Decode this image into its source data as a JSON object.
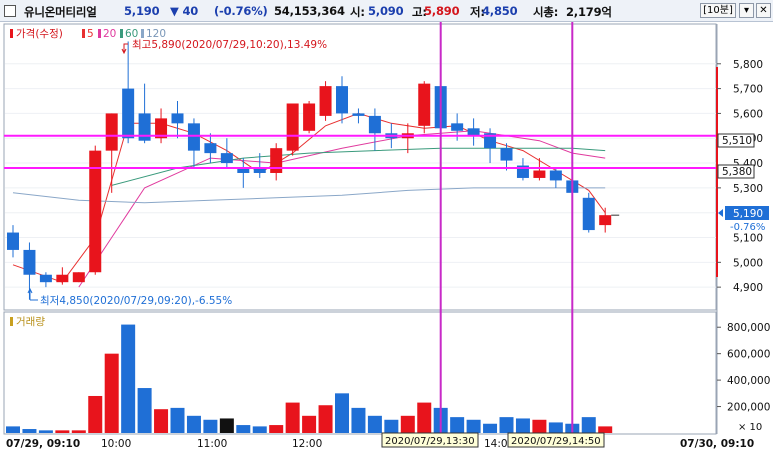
{
  "header": {
    "stock_name": "유니온머티리얼",
    "price": "5,190",
    "change": "▼ 40",
    "change_pct": "(-0.76%)",
    "volume": "54,153,364",
    "open_label": "시:",
    "open": "5,090",
    "high_label": "고:",
    "high": "5,890",
    "low_label": "저:",
    "low": "4,850",
    "mcap_label": "시총:",
    "mcap": "2,179억",
    "interval": "[10분]",
    "btn_minimize": "▾",
    "btn_close": "✕"
  },
  "legend": {
    "price_label": "가격(수정)",
    "ma": [
      "5",
      "20",
      "60",
      "120"
    ]
  },
  "annotations": {
    "high": "최고5,890(2020/07/29,10:20),13.49%",
    "low": "최저4,850(2020/07/29,09:20),-6.55%"
  },
  "volume_panel": {
    "title": "거래량"
  },
  "price_axis": {
    "ticks": [
      "5,800",
      "5,700",
      "5,600",
      "5,500",
      "5,300",
      "5,000",
      "4,900"
    ],
    "partial_ticks": [
      "5,400",
      "5,100"
    ],
    "box_5510": "5,510",
    "box_5380": "5,380",
    "current": "5,190",
    "current_pct": "-0.76%"
  },
  "volume_axis": {
    "ticks": [
      "800,000",
      "600,000",
      "400,000",
      "200,000"
    ],
    "multiplier": "× 10"
  },
  "x_axis": {
    "start": "07/29, 09:10",
    "labels": [
      "10:00",
      "11:00",
      "12:00",
      "14:00"
    ],
    "end": "07/30, 09:10",
    "crosshair1": "2020/07/29,13:30",
    "crosshair2": "2020/07/29,14:50"
  },
  "colors": {
    "up": "#e8141c",
    "down": "#1f6fd6",
    "horizontal_lines": "#ff1aff",
    "vertical_lines": "#c829c8",
    "ma5": "#e83030",
    "ma20": "#e03a9e",
    "ma60": "#3a9a7c",
    "ma120": "#8aa7c8"
  },
  "chart_data": {
    "type": "candlestick",
    "interval": "10분",
    "times": [
      "09:10",
      "09:20",
      "09:30",
      "09:40",
      "09:50",
      "10:00",
      "10:10",
      "10:20",
      "10:30",
      "10:40",
      "10:50",
      "11:00",
      "11:10",
      "11:20",
      "11:30",
      "11:40",
      "11:50",
      "12:00",
      "12:10",
      "12:20",
      "12:30",
      "12:40",
      "12:50",
      "13:00",
      "13:10",
      "13:20",
      "13:30",
      "13:40",
      "13:50",
      "14:00",
      "14:10",
      "14:20",
      "14:30",
      "14:40",
      "14:50",
      "15:00",
      "15:10"
    ],
    "candles": [
      [
        5120,
        5150,
        5020,
        5050
      ],
      [
        5050,
        5080,
        4850,
        4950
      ],
      [
        4950,
        4960,
        4900,
        4920
      ],
      [
        4920,
        4980,
        4910,
        4950
      ],
      [
        4920,
        4960,
        4920,
        4960
      ],
      [
        4960,
        5470,
        4950,
        5450
      ],
      [
        5450,
        5600,
        5280,
        5600
      ],
      [
        5700,
        5890,
        5480,
        5500
      ],
      [
        5600,
        5720,
        5480,
        5490
      ],
      [
        5500,
        5620,
        5480,
        5580
      ],
      [
        5600,
        5650,
        5500,
        5560
      ],
      [
        5560,
        5580,
        5380,
        5450
      ],
      [
        5480,
        5520,
        5400,
        5440
      ],
      [
        5440,
        5500,
        5380,
        5400
      ],
      [
        5380,
        5420,
        5300,
        5360
      ],
      [
        5380,
        5440,
        5340,
        5360
      ],
      [
        5360,
        5480,
        5330,
        5460
      ],
      [
        5450,
        5640,
        5430,
        5640
      ],
      [
        5530,
        5650,
        5520,
        5640
      ],
      [
        5590,
        5730,
        5570,
        5710
      ],
      [
        5710,
        5750,
        5560,
        5600
      ],
      [
        5600,
        5620,
        5560,
        5590
      ],
      [
        5590,
        5620,
        5450,
        5520
      ],
      [
        5520,
        5560,
        5460,
        5500
      ],
      [
        5500,
        5560,
        5440,
        5520
      ],
      [
        5550,
        5730,
        5520,
        5720
      ],
      [
        5710,
        5700,
        5530,
        5540
      ],
      [
        5560,
        5600,
        5490,
        5530
      ],
      [
        5540,
        5580,
        5470,
        5510
      ],
      [
        5520,
        5540,
        5400,
        5460
      ],
      [
        5460,
        5480,
        5370,
        5410
      ],
      [
        5390,
        5420,
        5330,
        5340
      ],
      [
        5340,
        5420,
        5330,
        5370
      ],
      [
        5370,
        5380,
        5300,
        5330
      ],
      [
        5330,
        5360,
        5260,
        5280
      ],
      [
        5260,
        5280,
        5120,
        5130
      ],
      [
        5150,
        5220,
        5120,
        5190
      ]
    ],
    "volumes": [
      50000,
      30000,
      20000,
      20000,
      20000,
      280000,
      600000,
      820000,
      340000,
      180000,
      190000,
      130000,
      100000,
      110000,
      60000,
      50000,
      60000,
      230000,
      130000,
      210000,
      300000,
      190000,
      130000,
      100000,
      130000,
      230000,
      190000,
      120000,
      100000,
      70000,
      120000,
      110000,
      100000,
      80000,
      70000,
      120000,
      50000
    ],
    "ma_lines": {
      "ma5": [
        [
          0,
          4990
        ],
        [
          3,
          4920
        ],
        [
          5,
          5100
        ],
        [
          7,
          5560
        ],
        [
          9,
          5560
        ],
        [
          11,
          5520
        ],
        [
          13,
          5450
        ],
        [
          15,
          5360
        ],
        [
          17,
          5440
        ],
        [
          19,
          5550
        ],
        [
          21,
          5600
        ],
        [
          23,
          5560
        ],
        [
          25,
          5540
        ],
        [
          27,
          5550
        ],
        [
          29,
          5490
        ],
        [
          31,
          5450
        ],
        [
          33,
          5370
        ],
        [
          35,
          5290
        ],
        [
          36,
          5200
        ]
      ],
      "ma20": [
        [
          4,
          4900
        ],
        [
          6,
          5100
        ],
        [
          8,
          5300
        ],
        [
          12,
          5420
        ],
        [
          16,
          5400
        ],
        [
          20,
          5460
        ],
        [
          24,
          5510
        ],
        [
          28,
          5530
        ],
        [
          32,
          5490
        ],
        [
          34,
          5440
        ],
        [
          36,
          5420
        ]
      ],
      "ma60": [
        [
          6,
          5310
        ],
        [
          10,
          5380
        ],
        [
          14,
          5420
        ],
        [
          18,
          5440
        ],
        [
          22,
          5450
        ],
        [
          26,
          5460
        ],
        [
          30,
          5460
        ],
        [
          34,
          5460
        ],
        [
          36,
          5450
        ]
      ],
      "ma120": [
        [
          0,
          5280
        ],
        [
          4,
          5250
        ],
        [
          8,
          5240
        ],
        [
          12,
          5250
        ],
        [
          16,
          5260
        ],
        [
          20,
          5270
        ],
        [
          24,
          5290
        ],
        [
          28,
          5300
        ],
        [
          32,
          5300
        ],
        [
          36,
          5300
        ]
      ]
    },
    "y_range": [
      4820,
      5920
    ],
    "volume_range": [
      0,
      900000
    ],
    "horizontal_lines": [
      5510,
      5380
    ],
    "vertical_line_times": [
      "13:30",
      "14:50"
    ]
  }
}
